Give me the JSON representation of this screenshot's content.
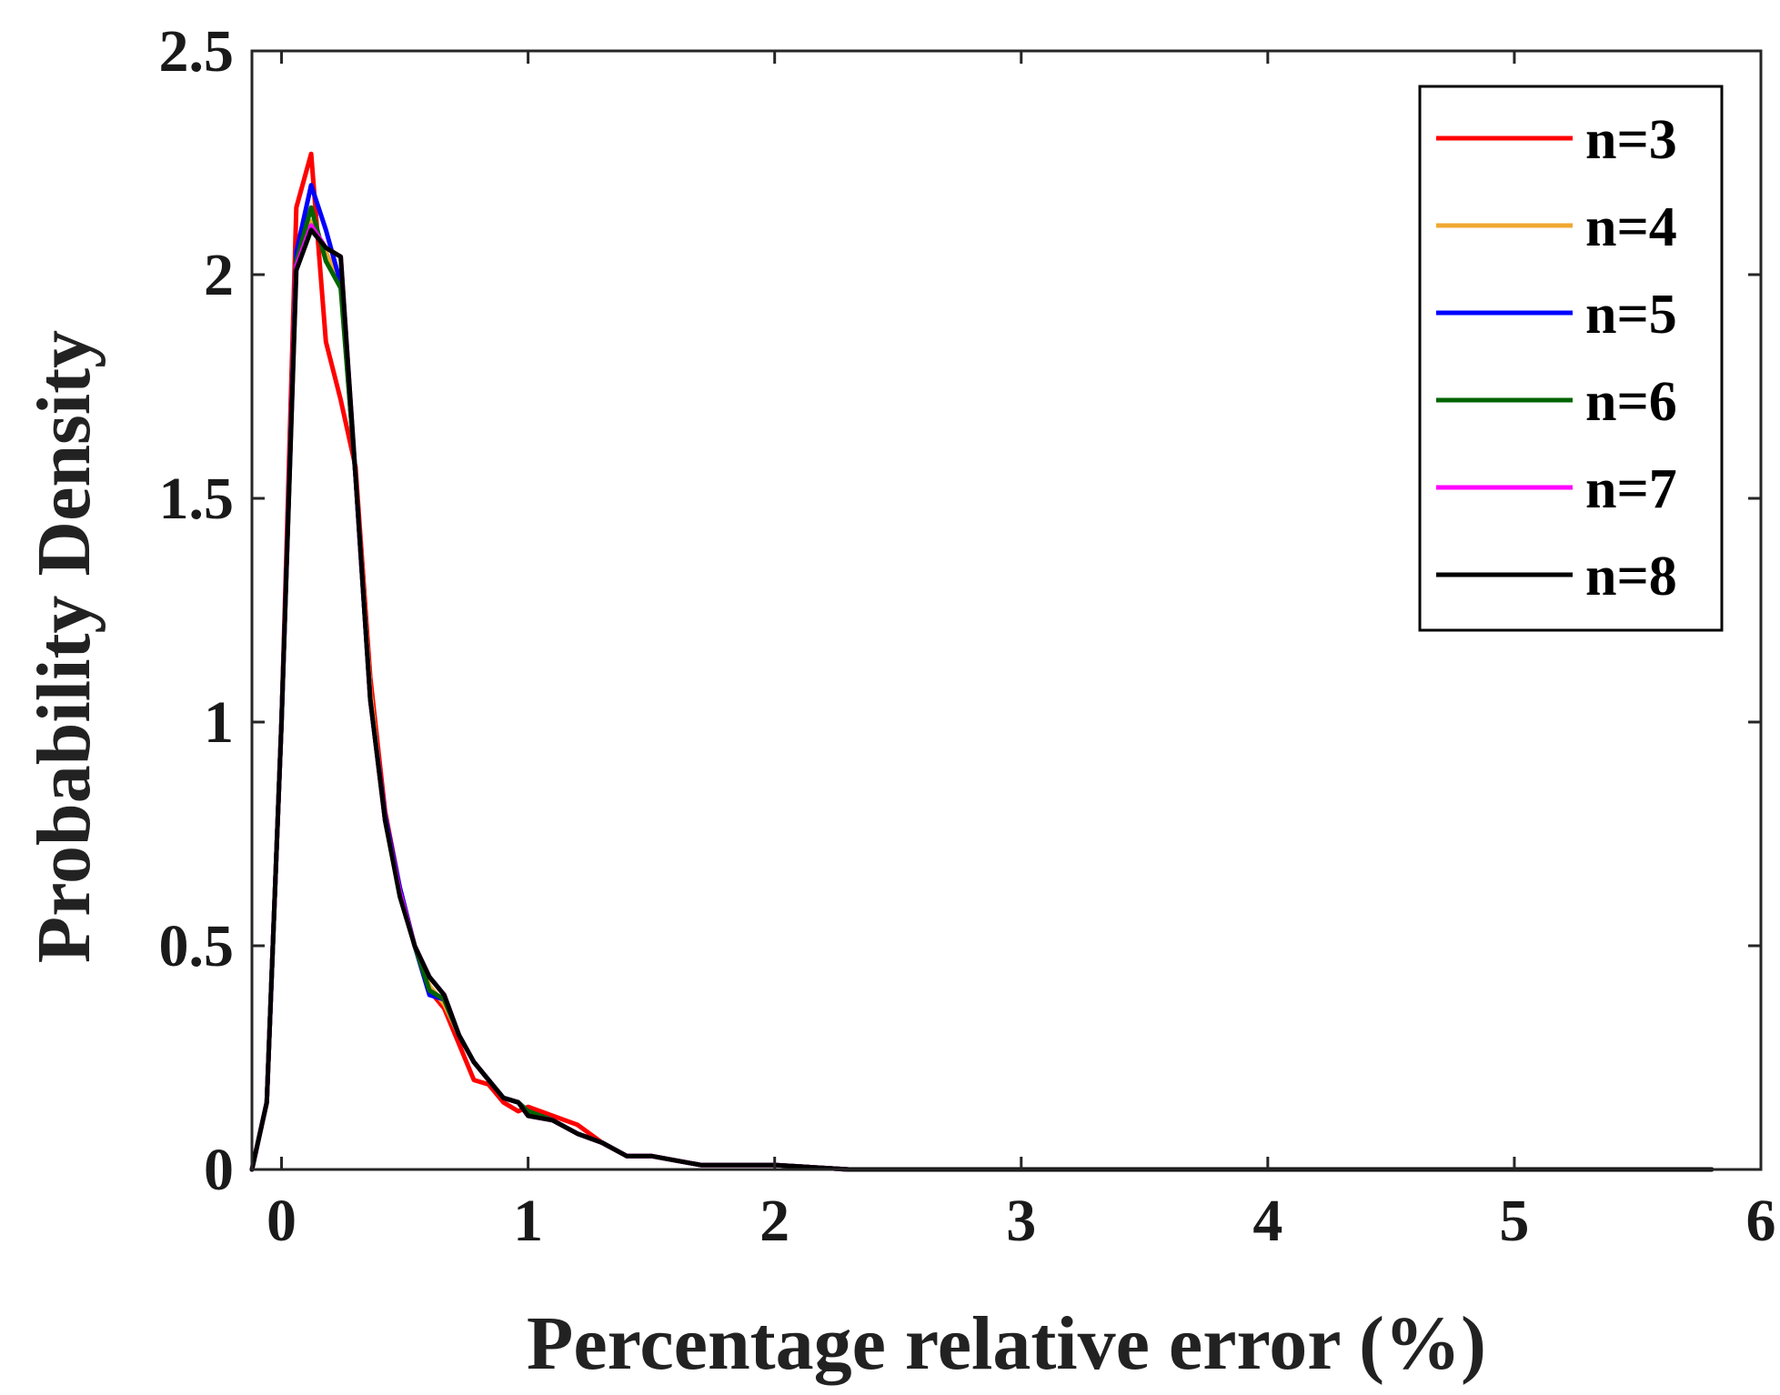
{
  "chart_data": {
    "type": "line",
    "title": "",
    "xlabel": "Percentage relative error (%)",
    "ylabel": "Probability Density",
    "xlim": [
      -0.12,
      6
    ],
    "ylim": [
      0,
      2.5
    ],
    "x_ticks": [
      0,
      1,
      2,
      3,
      4,
      5,
      6
    ],
    "x_tick_labels": [
      "0",
      "1",
      "2",
      "3",
      "4",
      "5",
      "6"
    ],
    "y_ticks": [
      0,
      0.5,
      1,
      1.5,
      2,
      2.5
    ],
    "y_tick_labels": [
      "0",
      "0.5",
      "1",
      "1.5",
      "2",
      "2.5"
    ],
    "grid": false,
    "box": true,
    "legend_position": "top-right",
    "x": [
      -0.12,
      -0.06,
      0.0,
      0.06,
      0.12,
      0.18,
      0.24,
      0.3,
      0.36,
      0.42,
      0.48,
      0.54,
      0.6,
      0.66,
      0.72,
      0.78,
      0.84,
      0.9,
      0.96,
      1.0,
      1.1,
      1.2,
      1.3,
      1.4,
      1.5,
      1.6,
      1.7,
      1.8,
      2.0,
      2.3,
      2.5,
      3.0,
      3.5,
      4.0,
      4.5,
      5.0,
      5.5,
      5.8
    ],
    "series": [
      {
        "name": "n=3",
        "color": "#ff0000",
        "values": [
          0.0,
          0.15,
          1.0,
          2.15,
          2.27,
          1.85,
          1.72,
          1.57,
          1.1,
          0.8,
          0.63,
          0.5,
          0.4,
          0.36,
          0.28,
          0.2,
          0.19,
          0.15,
          0.13,
          0.14,
          0.12,
          0.1,
          0.06,
          0.03,
          0.03,
          0.02,
          0.01,
          0.01,
          0.01,
          0.0,
          0.0,
          0.0,
          0.0,
          0.0,
          0.0,
          0.0,
          0.0,
          0.0
        ]
      },
      {
        "name": "n=4",
        "color": "#f0a830",
        "values": [
          0.0,
          0.15,
          1.0,
          2.05,
          2.12,
          2.05,
          1.98,
          1.55,
          1.07,
          0.78,
          0.63,
          0.5,
          0.41,
          0.37,
          0.3,
          0.24,
          0.2,
          0.16,
          0.15,
          0.13,
          0.11,
          0.08,
          0.06,
          0.03,
          0.03,
          0.02,
          0.01,
          0.01,
          0.01,
          0.0,
          0.0,
          0.0,
          0.0,
          0.0,
          0.0,
          0.0,
          0.0,
          0.0
        ]
      },
      {
        "name": "n=5",
        "color": "#0000ff",
        "values": [
          0.0,
          0.15,
          1.0,
          2.05,
          2.2,
          2.1,
          1.98,
          1.55,
          1.05,
          0.79,
          0.63,
          0.5,
          0.39,
          0.38,
          0.3,
          0.24,
          0.2,
          0.16,
          0.15,
          0.13,
          0.11,
          0.08,
          0.06,
          0.03,
          0.03,
          0.02,
          0.01,
          0.01,
          0.01,
          0.0,
          0.0,
          0.0,
          0.0,
          0.0,
          0.0,
          0.0,
          0.0,
          0.0
        ]
      },
      {
        "name": "n=6",
        "color": "#006400",
        "values": [
          0.0,
          0.15,
          1.0,
          2.03,
          2.15,
          2.03,
          1.97,
          1.55,
          1.05,
          0.78,
          0.62,
          0.5,
          0.4,
          0.38,
          0.3,
          0.24,
          0.2,
          0.16,
          0.15,
          0.13,
          0.11,
          0.08,
          0.06,
          0.03,
          0.03,
          0.02,
          0.01,
          0.01,
          0.01,
          0.0,
          0.0,
          0.0,
          0.0,
          0.0,
          0.0,
          0.0,
          0.0,
          0.0
        ]
      },
      {
        "name": "n=7",
        "color": "#ff00ff",
        "values": [
          0.0,
          0.15,
          1.0,
          2.02,
          2.11,
          2.06,
          2.04,
          1.55,
          1.05,
          0.78,
          0.62,
          0.5,
          0.43,
          0.39,
          0.3,
          0.24,
          0.2,
          0.16,
          0.15,
          0.12,
          0.11,
          0.08,
          0.06,
          0.03,
          0.03,
          0.02,
          0.01,
          0.01,
          0.01,
          0.0,
          0.0,
          0.0,
          0.0,
          0.0,
          0.0,
          0.0,
          0.0,
          0.0
        ]
      },
      {
        "name": "n=8",
        "color": "#000000",
        "values": [
          0.0,
          0.15,
          1.0,
          2.01,
          2.1,
          2.06,
          2.04,
          1.55,
          1.05,
          0.78,
          0.61,
          0.5,
          0.43,
          0.39,
          0.3,
          0.24,
          0.2,
          0.16,
          0.15,
          0.12,
          0.11,
          0.08,
          0.06,
          0.03,
          0.03,
          0.02,
          0.01,
          0.01,
          0.01,
          0.0,
          0.0,
          0.0,
          0.0,
          0.0,
          0.0,
          0.0,
          0.0,
          0.0
        ]
      }
    ]
  }
}
